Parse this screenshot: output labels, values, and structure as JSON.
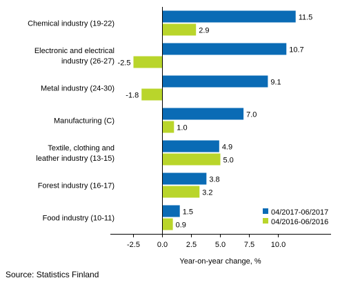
{
  "chart_data": {
    "type": "bar",
    "orientation": "horizontal",
    "categories": [
      [
        "Chemical industry (19-22)"
      ],
      [
        "Electronic and electrical",
        "industry (26-27)"
      ],
      [
        "Metal industry (24-30)"
      ],
      [
        "Manufacturing (C)"
      ],
      [
        "Textile, clothing and",
        "leather industry (13-15)"
      ],
      [
        "Forest industry (16-17)"
      ],
      [
        "Food industry (10-11)"
      ]
    ],
    "series": [
      {
        "name": "04/2017-06/2017",
        "color": "#0a6bb5",
        "values": [
          11.5,
          10.7,
          9.1,
          7.0,
          4.9,
          3.8,
          1.5
        ],
        "labels": [
          "11.5",
          "10.7",
          "9.1",
          "7.0",
          "4.9",
          "3.8",
          "1.5"
        ]
      },
      {
        "name": "04/2016-06/2016",
        "color": "#b9d52b",
        "values": [
          2.9,
          -2.5,
          -1.8,
          1.0,
          5.0,
          3.2,
          0.9
        ],
        "labels": [
          "2.9",
          "-2.5",
          "-1.8",
          "1.0",
          "5.0",
          "3.2",
          "0.9"
        ]
      }
    ],
    "xlabel": "Year-on-year change, %",
    "xlim": [
      -4,
      12.5
    ],
    "xticks": [
      -2.5,
      0,
      2.5,
      5,
      7.5,
      10
    ],
    "xtick_labels": [
      "-2.5",
      "0.0",
      "2.5",
      "5.0",
      "7.5",
      "10.0"
    ],
    "grid": false,
    "legend_position": "bottom-right"
  },
  "source": "Source: Statistics Finland"
}
